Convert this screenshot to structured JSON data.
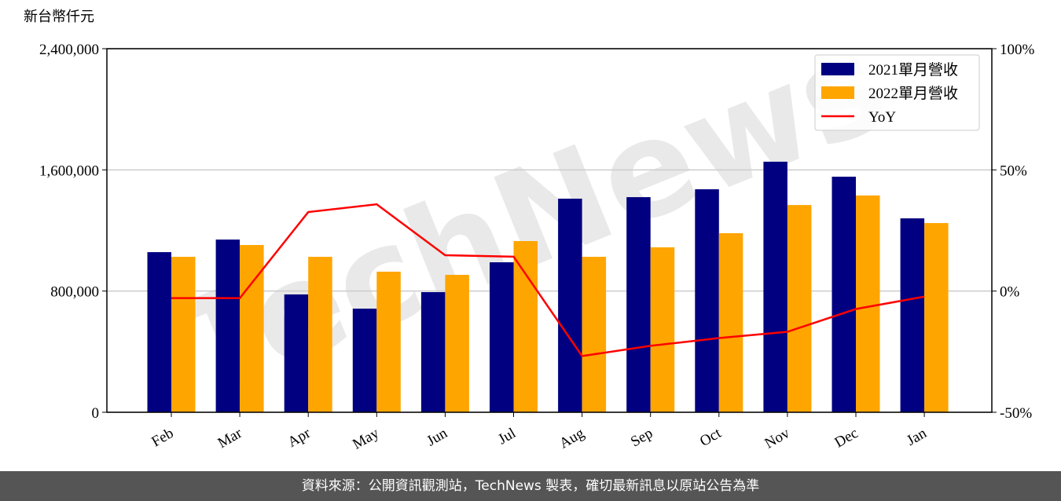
{
  "chart_data": {
    "type": "bar",
    "y_label": "新台幣仟元",
    "watermark": "TechNews",
    "categories": [
      "Feb",
      "Mar",
      "Apr",
      "May",
      "Jun",
      "Jul",
      "Aug",
      "Sep",
      "Oct",
      "Nov",
      "Dec",
      "Jan"
    ],
    "series": [
      {
        "name": "2021單月營收",
        "color": "#000080",
        "type": "bar",
        "values": [
          1057000,
          1140000,
          778000,
          684000,
          793000,
          990000,
          1410000,
          1420000,
          1472000,
          1654000,
          1555000,
          1280000
        ]
      },
      {
        "name": "2022單月營收",
        "color": "#ffa500",
        "type": "bar",
        "values": [
          1026000,
          1104000,
          1026000,
          928000,
          907000,
          1130000,
          1026000,
          1089000,
          1182000,
          1368000,
          1431000,
          1249000
        ]
      },
      {
        "name": "YoY",
        "color": "#ff0000",
        "type": "line",
        "axis": "y2",
        "values": [
          -2.9,
          -2.9,
          32.6,
          35.8,
          14.8,
          14.2,
          -26.8,
          -22.6,
          -19.4,
          -16.8,
          -7.4,
          -2.3
        ]
      }
    ],
    "ylim": [
      0,
      2400000
    ],
    "yticks": [
      0,
      {
        "value": 800000,
        "label": "800,000"
      },
      {
        "value": 1600000,
        "label": "1,600,000"
      },
      {
        "value": 2400000,
        "label": "2,400,000"
      }
    ],
    "y2lim": [
      -50,
      100
    ],
    "y2ticks": [
      {
        "value": -50,
        "label": "-50%"
      },
      {
        "value": 0,
        "label": "0%"
      },
      {
        "value": 50,
        "label": "50%"
      },
      {
        "value": 100,
        "label": "100%"
      }
    ],
    "grid": true,
    "legend": "upper right"
  },
  "footer": "資料來源：公開資訊觀測站，TechNews 製表，確切最新訊息以原站公告為準"
}
